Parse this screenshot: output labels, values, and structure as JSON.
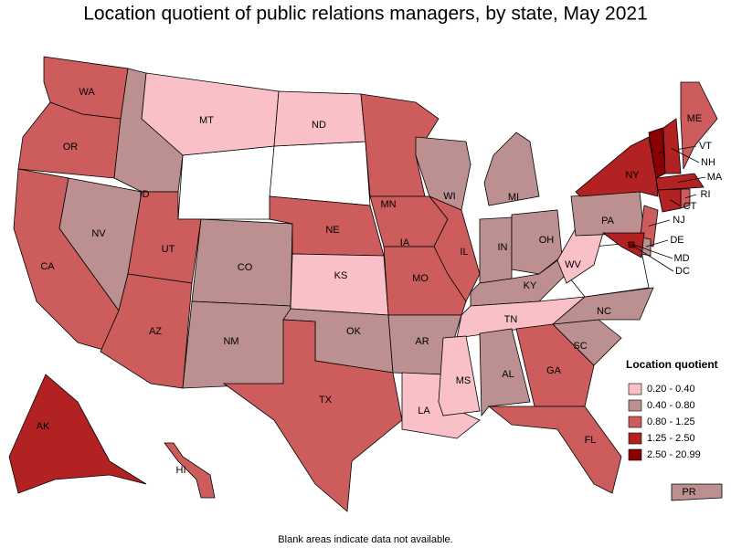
{
  "title": "Location quotient of public relations managers, by state, May 2021",
  "note": "Blank areas indicate data not available.",
  "legend": {
    "title": "Location quotient",
    "items": [
      {
        "label": "0.20 - 0.40",
        "color": "#f9c0c8"
      },
      {
        "label": "0.40 - 0.80",
        "color": "#bc9090"
      },
      {
        "label": "0.80 - 1.25",
        "color": "#cd5c5c"
      },
      {
        "label": "1.25 - 2.50",
        "color": "#b22222"
      },
      {
        "label": "2.50 - 20.99",
        "color": "#8b0000"
      }
    ]
  },
  "states": [
    {
      "label": "WA",
      "range": "0.80 - 1.25"
    },
    {
      "label": "OR",
      "range": "0.80 - 1.25"
    },
    {
      "label": "CA",
      "range": "0.80 - 1.25"
    },
    {
      "label": "NV",
      "range": "0.40 - 0.80"
    },
    {
      "label": "ID",
      "range": "0.40 - 0.80"
    },
    {
      "label": "MT",
      "range": "0.20 - 0.40"
    },
    {
      "label": "UT",
      "range": "0.80 - 1.25"
    },
    {
      "label": "AZ",
      "range": "0.80 - 1.25"
    },
    {
      "label": "CO",
      "range": "0.40 - 0.80"
    },
    {
      "label": "NM",
      "range": "0.40 - 0.80"
    },
    {
      "label": "ND",
      "range": "0.20 - 0.40"
    },
    {
      "label": "NE",
      "range": "0.80 - 1.25"
    },
    {
      "label": "KS",
      "range": "0.20 - 0.40"
    },
    {
      "label": "OK",
      "range": "0.40 - 0.80"
    },
    {
      "label": "TX",
      "range": "0.80 - 1.25"
    },
    {
      "label": "MN",
      "range": "0.80 - 1.25"
    },
    {
      "label": "IA",
      "range": "0.80 - 1.25"
    },
    {
      "label": "MO",
      "range": "0.80 - 1.25"
    },
    {
      "label": "AR",
      "range": "0.40 - 0.80"
    },
    {
      "label": "LA",
      "range": "0.20 - 0.40"
    },
    {
      "label": "WI",
      "range": "0.40 - 0.80"
    },
    {
      "label": "IL",
      "range": "0.80 - 1.25"
    },
    {
      "label": "MI",
      "range": "0.40 - 0.80"
    },
    {
      "label": "IN",
      "range": "0.40 - 0.80"
    },
    {
      "label": "OH",
      "range": "0.40 - 0.80"
    },
    {
      "label": "KY",
      "range": "0.40 - 0.80"
    },
    {
      "label": "TN",
      "range": "0.20 - 0.40"
    },
    {
      "label": "MS",
      "range": "0.20 - 0.40"
    },
    {
      "label": "AL",
      "range": "0.40 - 0.80"
    },
    {
      "label": "GA",
      "range": "0.80 - 1.25"
    },
    {
      "label": "FL",
      "range": "0.80 - 1.25"
    },
    {
      "label": "SC",
      "range": "0.40 - 0.80"
    },
    {
      "label": "NC",
      "range": "0.40 - 0.80"
    },
    {
      "label": "WV",
      "range": "0.20 - 0.40"
    },
    {
      "label": "PA",
      "range": "0.40 - 0.80"
    },
    {
      "label": "NY",
      "range": "1.25 - 2.50"
    },
    {
      "label": "ME",
      "range": "0.80 - 1.25"
    },
    {
      "label": "VT",
      "range": "2.50 - 20.99"
    },
    {
      "label": "NH",
      "range": "1.25 - 2.50"
    },
    {
      "label": "MA",
      "range": "1.25 - 2.50"
    },
    {
      "label": "RI",
      "range": "0.80 - 1.25"
    },
    {
      "label": "CT",
      "range": "1.25 - 2.50"
    },
    {
      "label": "NJ",
      "range": "0.80 - 1.25"
    },
    {
      "label": "DE",
      "range": "0.40 - 0.80"
    },
    {
      "label": "MD",
      "range": "1.25 - 2.50"
    },
    {
      "label": "DC",
      "range": "2.50 - 20.99"
    },
    {
      "label": "AK",
      "range": "1.25 - 2.50"
    },
    {
      "label": "HI",
      "range": "0.80 - 1.25"
    },
    {
      "label": "PR",
      "range": "0.40 - 0.80"
    }
  ]
}
